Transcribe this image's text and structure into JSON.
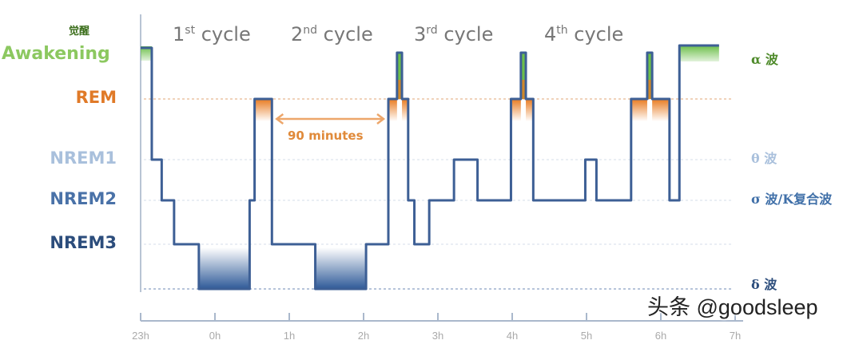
{
  "chart_data": {
    "type": "line",
    "step": true,
    "stage_levels": [
      "Awakening",
      "REM",
      "NREM1",
      "NREM2",
      "NREM3",
      "deep"
    ],
    "left_labels": [
      {
        "text": "觉醒",
        "color": "#3a6d1a"
      },
      {
        "text": "Awakening",
        "color": "#8cc860"
      },
      {
        "text": "REM",
        "color": "#e07a28"
      },
      {
        "text": "NREM1",
        "color": "#a9c0dc"
      },
      {
        "text": "NREM2",
        "color": "#4a72a8"
      },
      {
        "text": "NREM3",
        "color": "#2c4d7c"
      }
    ],
    "right_labels": [
      {
        "text": "α 波",
        "color": "#4e8a2a",
        "level": "Awakening"
      },
      {
        "text": "θ 波",
        "color": "#a9c0dc",
        "level": "NREM1"
      },
      {
        "text": "σ 波/K复合波",
        "color": "#3f6fa8",
        "level": "NREM2"
      },
      {
        "text": "δ 波",
        "color": "#2c4d7c",
        "level": "deep"
      }
    ],
    "cycles": [
      {
        "n": "1",
        "sup": "st",
        "word": "cycle"
      },
      {
        "n": "2",
        "sup": "nd",
        "word": "cycle"
      },
      {
        "n": "3",
        "sup": "rd",
        "word": "cycle"
      },
      {
        "n": "4",
        "sup": "th",
        "word": "cycle"
      }
    ],
    "x_ticks": [
      "23h",
      "0h",
      "1h",
      "2h",
      "3h",
      "4h",
      "5h",
      "6h",
      "7h"
    ],
    "annotation": {
      "text": "90 minutes",
      "from": "00:46",
      "to": "02:20"
    },
    "segments": [
      [
        "23:00",
        "Awakening"
      ],
      [
        "23:09",
        "NREM1"
      ],
      [
        "23:17",
        "NREM2"
      ],
      [
        "23:27",
        "NREM3"
      ],
      [
        "23:47",
        "deep"
      ],
      [
        "00:28",
        "NREM2"
      ],
      [
        "00:32",
        "REM"
      ],
      [
        "00:46",
        "NREM3"
      ],
      [
        "01:21",
        "deep"
      ],
      [
        "02:02",
        "NREM3"
      ],
      [
        "02:20",
        "REM"
      ],
      [
        "02:27",
        "Awakening"
      ],
      [
        "02:31",
        "REM"
      ],
      [
        "02:36",
        "NREM2"
      ],
      [
        "02:41",
        "NREM3"
      ],
      [
        "02:53",
        "NREM2"
      ],
      [
        "03:13",
        "NREM1"
      ],
      [
        "03:32",
        "NREM2"
      ],
      [
        "03:59",
        "REM"
      ],
      [
        "04:07",
        "Awakening"
      ],
      [
        "04:11",
        "REM"
      ],
      [
        "04:17",
        "NREM2"
      ],
      [
        "04:59",
        "NREM1"
      ],
      [
        "05:08",
        "NREM2"
      ],
      [
        "05:36",
        "REM"
      ],
      [
        "05:49",
        "Awakening"
      ],
      [
        "05:53",
        "REM"
      ],
      [
        "06:07",
        "NREM2"
      ],
      [
        "06:15",
        "Awakening"
      ],
      [
        "06:47",
        "end"
      ]
    ],
    "colors": {
      "line": "#3d5f95",
      "rem": "#e87a20",
      "wake": "#6cbf4a",
      "deep": "#2f5a98"
    }
  },
  "watermark": "头条 @goodsleep"
}
